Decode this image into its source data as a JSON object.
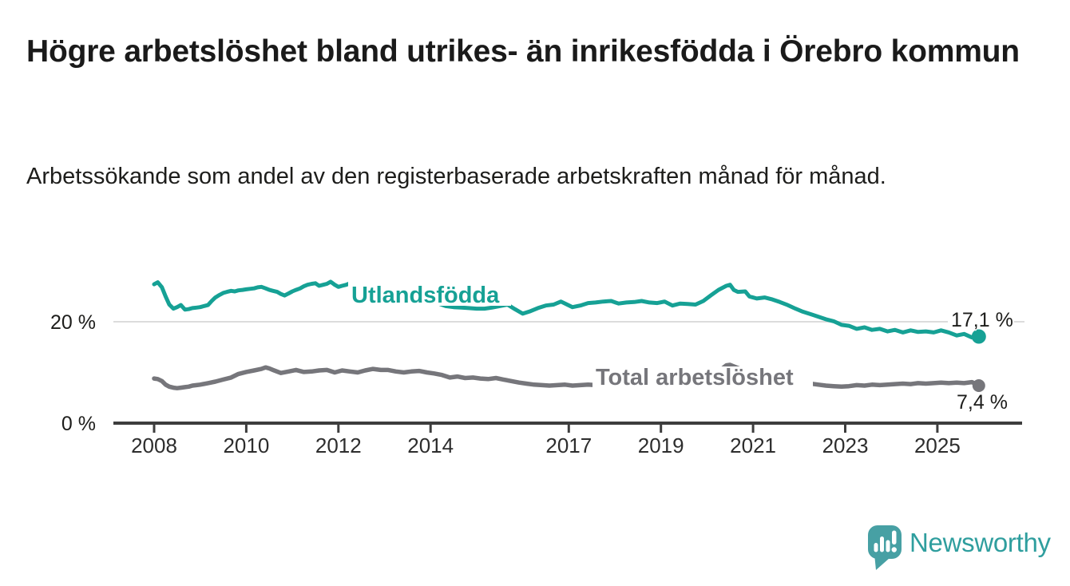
{
  "title": "Högre arbetslöshet bland utrikes- än inrikesfödda i Örebro kommun",
  "subtitle": "Arbetssökande som andel av den registerbaserade arbetskraften månad för månad.",
  "brand": {
    "name": "Newsworthy"
  },
  "colors": {
    "teal": "#16a195",
    "gray": "#76767b",
    "axis": "#3d3d3d",
    "grid": "#dcdcdc",
    "text": "#1d1d1b",
    "logo_bubble": "#47a0a4",
    "logo_text": "#2f9e9e"
  },
  "chart_data": {
    "type": "line",
    "title": "Högre arbetslöshet bland utrikes- än inrikesfödda i Örebro kommun",
    "subtitle": "Arbetssökande som andel av den registerbaserade arbetskraften månad för månad.",
    "unit": "%",
    "grid": "y-only-20",
    "x_axis": {
      "range": [
        2007.9,
        2026.0
      ],
      "ticks": [
        {
          "value": 2008,
          "label": "2008"
        },
        {
          "value": 2010,
          "label": "2010"
        },
        {
          "value": 2012,
          "label": "2012"
        },
        {
          "value": 2014,
          "label": "2014"
        },
        {
          "value": 2017,
          "label": "2017"
        },
        {
          "value": 2019,
          "label": "2019"
        },
        {
          "value": 2021,
          "label": "2021"
        },
        {
          "value": 2023,
          "label": "2023"
        },
        {
          "value": 2025,
          "label": "2025"
        }
      ]
    },
    "y_axis": {
      "range": [
        0,
        31
      ],
      "ticks": [
        {
          "value": 0,
          "label": "0 %"
        },
        {
          "value": 20,
          "label": "20 %"
        }
      ]
    },
    "series": [
      {
        "name": "Utlandsfödda",
        "color": "#16a195",
        "end_value": 17.1,
        "end_label": "17,1 %",
        "points": [
          [
            2008.0,
            27.4
          ],
          [
            2008.08,
            27.8
          ],
          [
            2008.17,
            26.8
          ],
          [
            2008.25,
            25.0
          ],
          [
            2008.33,
            23.4
          ],
          [
            2008.42,
            22.6
          ],
          [
            2008.5,
            22.9
          ],
          [
            2008.58,
            23.3
          ],
          [
            2008.67,
            22.4
          ],
          [
            2008.75,
            22.5
          ],
          [
            2008.83,
            22.7
          ],
          [
            2008.92,
            22.8
          ],
          [
            2009.0,
            22.9
          ],
          [
            2009.08,
            23.1
          ],
          [
            2009.17,
            23.3
          ],
          [
            2009.25,
            24.1
          ],
          [
            2009.33,
            24.8
          ],
          [
            2009.42,
            25.3
          ],
          [
            2009.5,
            25.7
          ],
          [
            2009.58,
            25.9
          ],
          [
            2009.67,
            26.1
          ],
          [
            2009.75,
            26.0
          ],
          [
            2009.83,
            26.2
          ],
          [
            2009.92,
            26.3
          ],
          [
            2010.0,
            26.4
          ],
          [
            2010.08,
            26.5
          ],
          [
            2010.17,
            26.6
          ],
          [
            2010.25,
            26.8
          ],
          [
            2010.33,
            26.9
          ],
          [
            2010.42,
            26.6
          ],
          [
            2010.5,
            26.3
          ],
          [
            2010.58,
            26.1
          ],
          [
            2010.67,
            25.9
          ],
          [
            2010.75,
            25.5
          ],
          [
            2010.83,
            25.2
          ],
          [
            2010.92,
            25.6
          ],
          [
            2011.0,
            26.0
          ],
          [
            2011.08,
            26.3
          ],
          [
            2011.17,
            26.6
          ],
          [
            2011.25,
            27.0
          ],
          [
            2011.33,
            27.3
          ],
          [
            2011.42,
            27.5
          ],
          [
            2011.5,
            27.6
          ],
          [
            2011.58,
            27.1
          ],
          [
            2011.67,
            27.3
          ],
          [
            2011.75,
            27.5
          ],
          [
            2011.83,
            27.9
          ],
          [
            2011.92,
            27.3
          ],
          [
            2012.0,
            26.9
          ],
          [
            2012.08,
            27.1
          ],
          [
            2012.17,
            27.3
          ],
          [
            2012.25,
            27.6
          ],
          [
            2012.33,
            27.7
          ],
          [
            2012.5,
            27.3
          ],
          [
            2012.67,
            26.8
          ],
          [
            2012.83,
            26.3
          ],
          [
            2013.0,
            26.0
          ],
          [
            2013.17,
            25.7
          ],
          [
            2013.33,
            25.4
          ],
          [
            2013.5,
            25.1
          ],
          [
            2013.67,
            24.7
          ],
          [
            2013.83,
            24.3
          ],
          [
            2014.0,
            24.0
          ],
          [
            2014.17,
            23.6
          ],
          [
            2014.33,
            23.1
          ],
          [
            2014.5,
            22.9
          ],
          [
            2014.67,
            22.8
          ],
          [
            2014.83,
            22.7
          ],
          [
            2015.0,
            22.6
          ],
          [
            2015.17,
            22.6
          ],
          [
            2015.33,
            22.8
          ],
          [
            2015.5,
            23.1
          ],
          [
            2015.67,
            23.4
          ],
          [
            2015.83,
            22.5
          ],
          [
            2016.0,
            21.6
          ],
          [
            2016.17,
            22.1
          ],
          [
            2016.33,
            22.7
          ],
          [
            2016.5,
            23.2
          ],
          [
            2016.67,
            23.4
          ],
          [
            2016.83,
            24.0
          ],
          [
            2016.92,
            23.6
          ],
          [
            2017.08,
            22.9
          ],
          [
            2017.25,
            23.2
          ],
          [
            2017.42,
            23.7
          ],
          [
            2017.58,
            23.8
          ],
          [
            2017.75,
            24.0
          ],
          [
            2017.92,
            24.1
          ],
          [
            2018.08,
            23.6
          ],
          [
            2018.25,
            23.8
          ],
          [
            2018.42,
            23.9
          ],
          [
            2018.58,
            24.1
          ],
          [
            2018.75,
            23.8
          ],
          [
            2018.92,
            23.7
          ],
          [
            2019.08,
            24.0
          ],
          [
            2019.25,
            23.2
          ],
          [
            2019.42,
            23.6
          ],
          [
            2019.58,
            23.5
          ],
          [
            2019.75,
            23.4
          ],
          [
            2019.92,
            24.1
          ],
          [
            2020.08,
            25.2
          ],
          [
            2020.25,
            26.3
          ],
          [
            2020.42,
            27.1
          ],
          [
            2020.5,
            27.3
          ],
          [
            2020.58,
            26.3
          ],
          [
            2020.67,
            25.9
          ],
          [
            2020.83,
            26.0
          ],
          [
            2020.92,
            25.0
          ],
          [
            2021.08,
            24.6
          ],
          [
            2021.25,
            24.8
          ],
          [
            2021.42,
            24.4
          ],
          [
            2021.58,
            23.9
          ],
          [
            2021.75,
            23.3
          ],
          [
            2021.92,
            22.6
          ],
          [
            2022.08,
            22.0
          ],
          [
            2022.25,
            21.5
          ],
          [
            2022.42,
            21.0
          ],
          [
            2022.58,
            20.5
          ],
          [
            2022.75,
            20.1
          ],
          [
            2022.92,
            19.4
          ],
          [
            2023.08,
            19.2
          ],
          [
            2023.25,
            18.6
          ],
          [
            2023.42,
            18.9
          ],
          [
            2023.58,
            18.4
          ],
          [
            2023.75,
            18.6
          ],
          [
            2023.92,
            18.1
          ],
          [
            2024.08,
            18.4
          ],
          [
            2024.25,
            17.9
          ],
          [
            2024.42,
            18.3
          ],
          [
            2024.58,
            18.0
          ],
          [
            2024.75,
            18.1
          ],
          [
            2024.92,
            17.9
          ],
          [
            2025.08,
            18.3
          ],
          [
            2025.25,
            17.9
          ],
          [
            2025.42,
            17.3
          ],
          [
            2025.58,
            17.6
          ],
          [
            2025.75,
            16.9
          ],
          [
            2025.9,
            17.1
          ]
        ]
      },
      {
        "name": "Total arbetslöshet",
        "color": "#76767b",
        "end_value": 7.4,
        "end_label": "7,4 %",
        "points": [
          [
            2008.0,
            8.8
          ],
          [
            2008.08,
            8.7
          ],
          [
            2008.17,
            8.3
          ],
          [
            2008.25,
            7.6
          ],
          [
            2008.33,
            7.2
          ],
          [
            2008.42,
            7.0
          ],
          [
            2008.5,
            6.9
          ],
          [
            2008.58,
            7.0
          ],
          [
            2008.67,
            7.1
          ],
          [
            2008.75,
            7.2
          ],
          [
            2008.83,
            7.4
          ],
          [
            2008.92,
            7.5
          ],
          [
            2009.0,
            7.6
          ],
          [
            2009.17,
            7.9
          ],
          [
            2009.33,
            8.2
          ],
          [
            2009.5,
            8.6
          ],
          [
            2009.67,
            9.0
          ],
          [
            2009.83,
            9.7
          ],
          [
            2010.0,
            10.1
          ],
          [
            2010.17,
            10.4
          ],
          [
            2010.33,
            10.7
          ],
          [
            2010.42,
            11.0
          ],
          [
            2010.5,
            10.8
          ],
          [
            2010.58,
            10.5
          ],
          [
            2010.75,
            9.9
          ],
          [
            2010.92,
            10.2
          ],
          [
            2011.08,
            10.5
          ],
          [
            2011.25,
            10.1
          ],
          [
            2011.42,
            10.2
          ],
          [
            2011.58,
            10.4
          ],
          [
            2011.75,
            10.5
          ],
          [
            2011.92,
            10.0
          ],
          [
            2012.08,
            10.4
          ],
          [
            2012.25,
            10.2
          ],
          [
            2012.42,
            10.0
          ],
          [
            2012.58,
            10.4
          ],
          [
            2012.75,
            10.7
          ],
          [
            2012.92,
            10.5
          ],
          [
            2013.08,
            10.5
          ],
          [
            2013.25,
            10.2
          ],
          [
            2013.42,
            10.0
          ],
          [
            2013.58,
            10.2
          ],
          [
            2013.75,
            10.3
          ],
          [
            2013.92,
            10.0
          ],
          [
            2014.08,
            9.8
          ],
          [
            2014.25,
            9.5
          ],
          [
            2014.42,
            9.0
          ],
          [
            2014.58,
            9.2
          ],
          [
            2014.75,
            8.9
          ],
          [
            2014.92,
            9.0
          ],
          [
            2015.08,
            8.8
          ],
          [
            2015.25,
            8.7
          ],
          [
            2015.42,
            8.9
          ],
          [
            2015.58,
            8.6
          ],
          [
            2015.75,
            8.3
          ],
          [
            2015.92,
            8.0
          ],
          [
            2016.08,
            7.8
          ],
          [
            2016.25,
            7.6
          ],
          [
            2016.42,
            7.5
          ],
          [
            2016.58,
            7.4
          ],
          [
            2016.75,
            7.5
          ],
          [
            2016.92,
            7.6
          ],
          [
            2017.08,
            7.4
          ],
          [
            2017.25,
            7.5
          ],
          [
            2017.42,
            7.6
          ],
          [
            2017.58,
            7.5
          ],
          [
            2017.75,
            7.4
          ],
          [
            2017.92,
            7.3
          ],
          [
            2018.08,
            7.4
          ],
          [
            2018.25,
            7.3
          ],
          [
            2018.42,
            7.2
          ],
          [
            2018.58,
            7.3
          ],
          [
            2018.75,
            7.2
          ],
          [
            2018.92,
            7.3
          ],
          [
            2019.08,
            7.2
          ],
          [
            2019.25,
            7.1
          ],
          [
            2019.42,
            7.2
          ],
          [
            2019.58,
            7.1
          ],
          [
            2019.75,
            7.3
          ],
          [
            2019.92,
            7.5
          ],
          [
            2020.08,
            8.3
          ],
          [
            2020.25,
            10.2
          ],
          [
            2020.42,
            11.4
          ],
          [
            2020.5,
            11.5
          ],
          [
            2020.58,
            11.2
          ],
          [
            2020.75,
            10.6
          ],
          [
            2020.92,
            10.2
          ],
          [
            2021.08,
            9.9
          ],
          [
            2021.25,
            9.5
          ],
          [
            2021.42,
            9.1
          ],
          [
            2021.58,
            8.8
          ],
          [
            2021.75,
            8.5
          ],
          [
            2021.92,
            8.2
          ],
          [
            2022.08,
            8.0
          ],
          [
            2022.25,
            7.8
          ],
          [
            2022.42,
            7.6
          ],
          [
            2022.58,
            7.4
          ],
          [
            2022.75,
            7.3
          ],
          [
            2022.92,
            7.2
          ],
          [
            2023.08,
            7.3
          ],
          [
            2023.25,
            7.5
          ],
          [
            2023.42,
            7.4
          ],
          [
            2023.58,
            7.6
          ],
          [
            2023.75,
            7.5
          ],
          [
            2023.92,
            7.6
          ],
          [
            2024.08,
            7.7
          ],
          [
            2024.25,
            7.8
          ],
          [
            2024.42,
            7.7
          ],
          [
            2024.58,
            7.9
          ],
          [
            2024.75,
            7.8
          ],
          [
            2024.92,
            7.9
          ],
          [
            2025.08,
            8.0
          ],
          [
            2025.25,
            7.9
          ],
          [
            2025.42,
            8.0
          ],
          [
            2025.58,
            7.9
          ],
          [
            2025.75,
            8.1
          ],
          [
            2025.9,
            7.4
          ]
        ]
      }
    ]
  }
}
